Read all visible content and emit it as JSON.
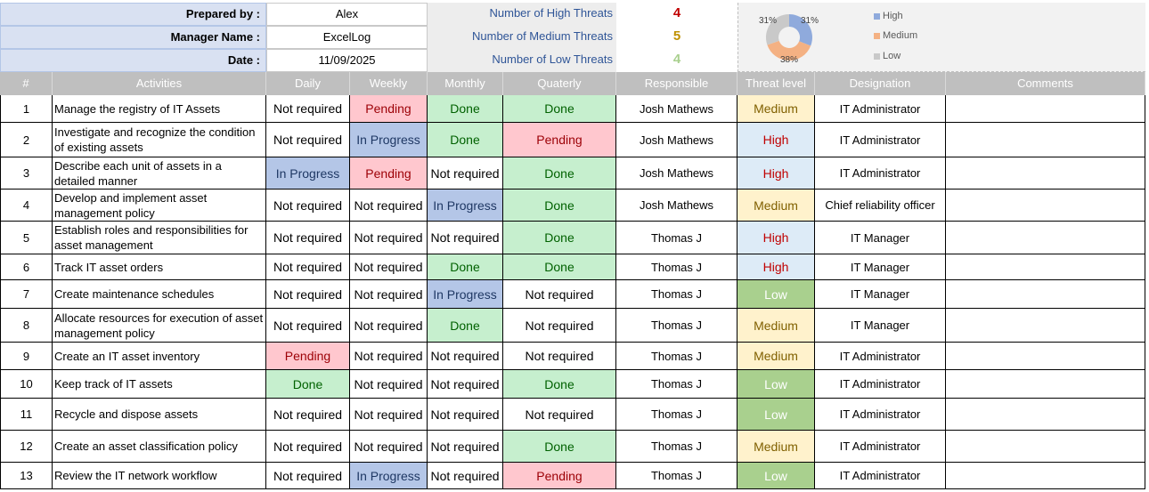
{
  "header": {
    "prepared_by_label": "Prepared by :",
    "prepared_by": "Alex",
    "manager_label": "Manager Name :",
    "manager": "ExcelLog",
    "date_label": "Date :",
    "date": "11/09/2025"
  },
  "threats": {
    "high_label": "Number of High Threats",
    "high_count": "4",
    "medium_label": "Number of Medium Threats",
    "medium_count": "5",
    "low_label": "Number of Low Threats",
    "low_count": "4"
  },
  "donut": {
    "high_pct": "31%",
    "medium_pct": "38%",
    "low_pct": "31%",
    "legend": [
      "High",
      "Medium",
      "Low"
    ]
  },
  "colors": {
    "high": "#8faadc",
    "medium": "#f4b183",
    "low": "#c9c9c9",
    "high_count": "#c00000",
    "medium_count": "#bf9000",
    "low_count": "#a9d08e"
  },
  "columns": [
    "#",
    "Activities",
    "Daily",
    "Weekly",
    "Monthly",
    "Quaterly",
    "Responsible",
    "Threat level",
    "Designation",
    "Comments"
  ],
  "rows": [
    {
      "num": "1",
      "activity": "Manage the registry of IT Assets",
      "daily": "Not required",
      "weekly": "Pending",
      "monthly": "Done",
      "quarterly": "Done",
      "responsible": "Josh Mathews",
      "threat": "Medium",
      "designation": "IT Administrator",
      "comments": ""
    },
    {
      "num": "2",
      "activity": "Investigate and recognize the condition of existing assets",
      "daily": "Not required",
      "weekly": "In Progress",
      "monthly": "Done",
      "quarterly": "Pending",
      "responsible": "Josh Mathews",
      "threat": "High",
      "designation": "IT Administrator",
      "comments": ""
    },
    {
      "num": "3",
      "activity": "Describe each unit of assets in a detailed manner",
      "daily": "In Progress",
      "weekly": "Pending",
      "monthly": "Not required",
      "quarterly": "Done",
      "responsible": "Josh Mathews",
      "threat": "High",
      "designation": "IT Administrator",
      "comments": ""
    },
    {
      "num": "4",
      "activity": "Develop and implement asset management policy",
      "daily": "Not required",
      "weekly": "Not required",
      "monthly": "In Progress",
      "quarterly": "Done",
      "responsible": "Josh Mathews",
      "threat": "Medium",
      "designation": "Chief reliability officer",
      "comments": ""
    },
    {
      "num": "5",
      "activity": "Establish roles and responsibilities for asset management",
      "daily": "Not required",
      "weekly": "Not required",
      "monthly": "Not required",
      "quarterly": "Done",
      "responsible": "Thomas J",
      "threat": "High",
      "designation": "IT Manager",
      "comments": ""
    },
    {
      "num": "6",
      "activity": "Track IT asset orders",
      "daily": "Not required",
      "weekly": "Not required",
      "monthly": "Done",
      "quarterly": "Done",
      "responsible": "Thomas J",
      "threat": "High",
      "designation": "IT Manager",
      "comments": ""
    },
    {
      "num": "7",
      "activity": "Create maintenance schedules",
      "daily": "Not required",
      "weekly": "Not required",
      "monthly": "In Progress",
      "quarterly": "Not required",
      "responsible": "Thomas J",
      "threat": "Low",
      "designation": "IT Manager",
      "comments": ""
    },
    {
      "num": "8",
      "activity": "Allocate resources for execution of asset management policy",
      "daily": "Not required",
      "weekly": "Not required",
      "monthly": "Done",
      "quarterly": "Not required",
      "responsible": "Thomas J",
      "threat": "Medium",
      "designation": "IT Manager",
      "comments": ""
    },
    {
      "num": "9",
      "activity": "Create an IT asset inventory",
      "daily": "Pending",
      "weekly": "Not required",
      "monthly": "Not required",
      "quarterly": "Not required",
      "responsible": "Thomas J",
      "threat": "Medium",
      "designation": "IT Administrator",
      "comments": ""
    },
    {
      "num": "10",
      "activity": "Keep track of IT assets",
      "daily": "Done",
      "weekly": "Not required",
      "monthly": "Not required",
      "quarterly": "Done",
      "responsible": "Thomas J",
      "threat": "Low",
      "designation": "IT Administrator",
      "comments": ""
    },
    {
      "num": "11",
      "activity": "Recycle and dispose assets",
      "daily": "Not required",
      "weekly": "Not required",
      "monthly": "Not required",
      "quarterly": "Not required",
      "responsible": "Thomas J",
      "threat": "Low",
      "designation": "IT Administrator",
      "comments": ""
    },
    {
      "num": "12",
      "activity": "Create an asset classification policy",
      "daily": "Not required",
      "weekly": "Not required",
      "monthly": "Not required",
      "quarterly": "Done",
      "responsible": "Thomas J",
      "threat": "Medium",
      "designation": "IT Administrator",
      "comments": ""
    },
    {
      "num": "13",
      "activity": "Review the IT network workflow",
      "daily": "Not required",
      "weekly": "In Progress",
      "monthly": "Not required",
      "quarterly": "Pending",
      "responsible": "Thomas J",
      "threat": "Low",
      "designation": "IT Administrator",
      "comments": ""
    }
  ]
}
